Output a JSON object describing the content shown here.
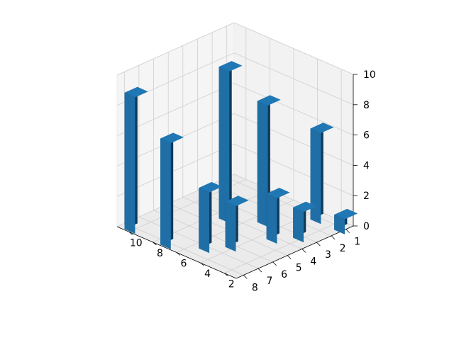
{
  "chart_data": {
    "type": "bar3d",
    "axes": {
      "left_axis": {
        "ticks": [
          "10",
          "8",
          "6",
          "4",
          "2"
        ],
        "range": [
          1,
          11
        ]
      },
      "right_axis": {
        "ticks": [
          "8",
          "7",
          "6",
          "5",
          "4",
          "3",
          "2",
          "1"
        ],
        "range": [
          0.5,
          8.5
        ]
      },
      "z_axis": {
        "ticks": [
          "0",
          "2",
          "4",
          "6",
          "8",
          "10"
        ],
        "range": [
          0,
          10
        ]
      }
    },
    "bars": [
      {
        "x": 10,
        "y": 8,
        "z": 9
      },
      {
        "x": 7,
        "y": 8,
        "z": 7
      },
      {
        "x": 7,
        "y": 4,
        "z": 10
      },
      {
        "x": 5,
        "y": 7,
        "z": 4
      },
      {
        "x": 5,
        "y": 3,
        "z": 8
      },
      {
        "x": 4,
        "y": 6,
        "z": 3
      },
      {
        "x": 3,
        "y": 4,
        "z": 3
      },
      {
        "x": 3,
        "y": 1,
        "z": 6
      },
      {
        "x": 2,
        "y": 3,
        "z": 2
      },
      {
        "x": 1,
        "y": 1,
        "z": 1
      }
    ],
    "bar_color": "#1f77b4",
    "grid": true
  }
}
